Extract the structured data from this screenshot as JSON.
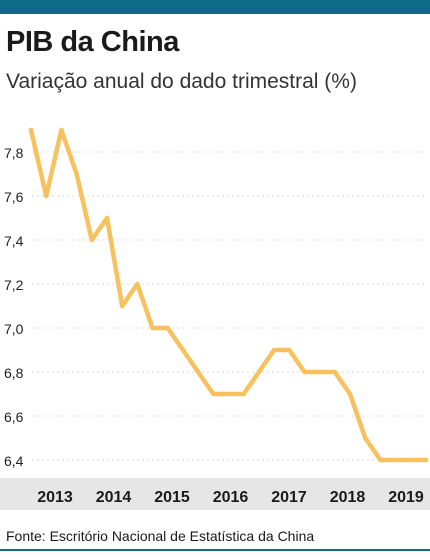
{
  "header": {
    "title": "PIB da China",
    "subtitle": "Variação anual do dado trimestral (%)"
  },
  "footer": {
    "source": "Fonte: Escritório Nacional de Estatística da China"
  },
  "colors": {
    "accent": "#0e6a85",
    "line": "#f7c15e",
    "axis_band": "#e6e6e6",
    "grid": "#cfcfcf"
  },
  "chart_data": {
    "type": "line",
    "title": "PIB da China",
    "subtitle": "Variação anual do dado trimestral (%)",
    "xlabel": "",
    "ylabel": "",
    "ylim": [
      6.4,
      7.9
    ],
    "yticks": [
      6.4,
      6.6,
      6.8,
      7.0,
      7.2,
      7.4,
      7.6,
      7.8
    ],
    "ytick_labels": [
      "6,4",
      "6,6",
      "6,8",
      "7,0",
      "7,2",
      "7,4",
      "7,6",
      "7,8"
    ],
    "xtick_labels": [
      "2013",
      "2014",
      "2015",
      "2016",
      "2017",
      "2018",
      "2019"
    ],
    "grid": true,
    "legend": "none",
    "series": [
      {
        "quarters": [
          "2013-Q1",
          "2013-Q2",
          "2013-Q3",
          "2013-Q4",
          "2014-Q1",
          "2014-Q2",
          "2014-Q3",
          "2014-Q4",
          "2015-Q1",
          "2015-Q2",
          "2015-Q3",
          "2015-Q4",
          "2016-Q1",
          "2016-Q2",
          "2016-Q3",
          "2016-Q4",
          "2017-Q1",
          "2017-Q2",
          "2017-Q3",
          "2017-Q4",
          "2018-Q1",
          "2018-Q2",
          "2018-Q3",
          "2018-Q4",
          "2019-Q1",
          "2019-Q2",
          "2019-Q3"
        ],
        "values": [
          7.9,
          7.6,
          7.9,
          7.7,
          7.4,
          7.5,
          7.1,
          7.2,
          7.0,
          7.0,
          6.9,
          6.8,
          6.7,
          6.7,
          6.7,
          6.8,
          6.9,
          6.9,
          6.8,
          6.8,
          6.8,
          6.7,
          6.5,
          6.4,
          6.4,
          6.4,
          6.4
        ]
      }
    ]
  }
}
